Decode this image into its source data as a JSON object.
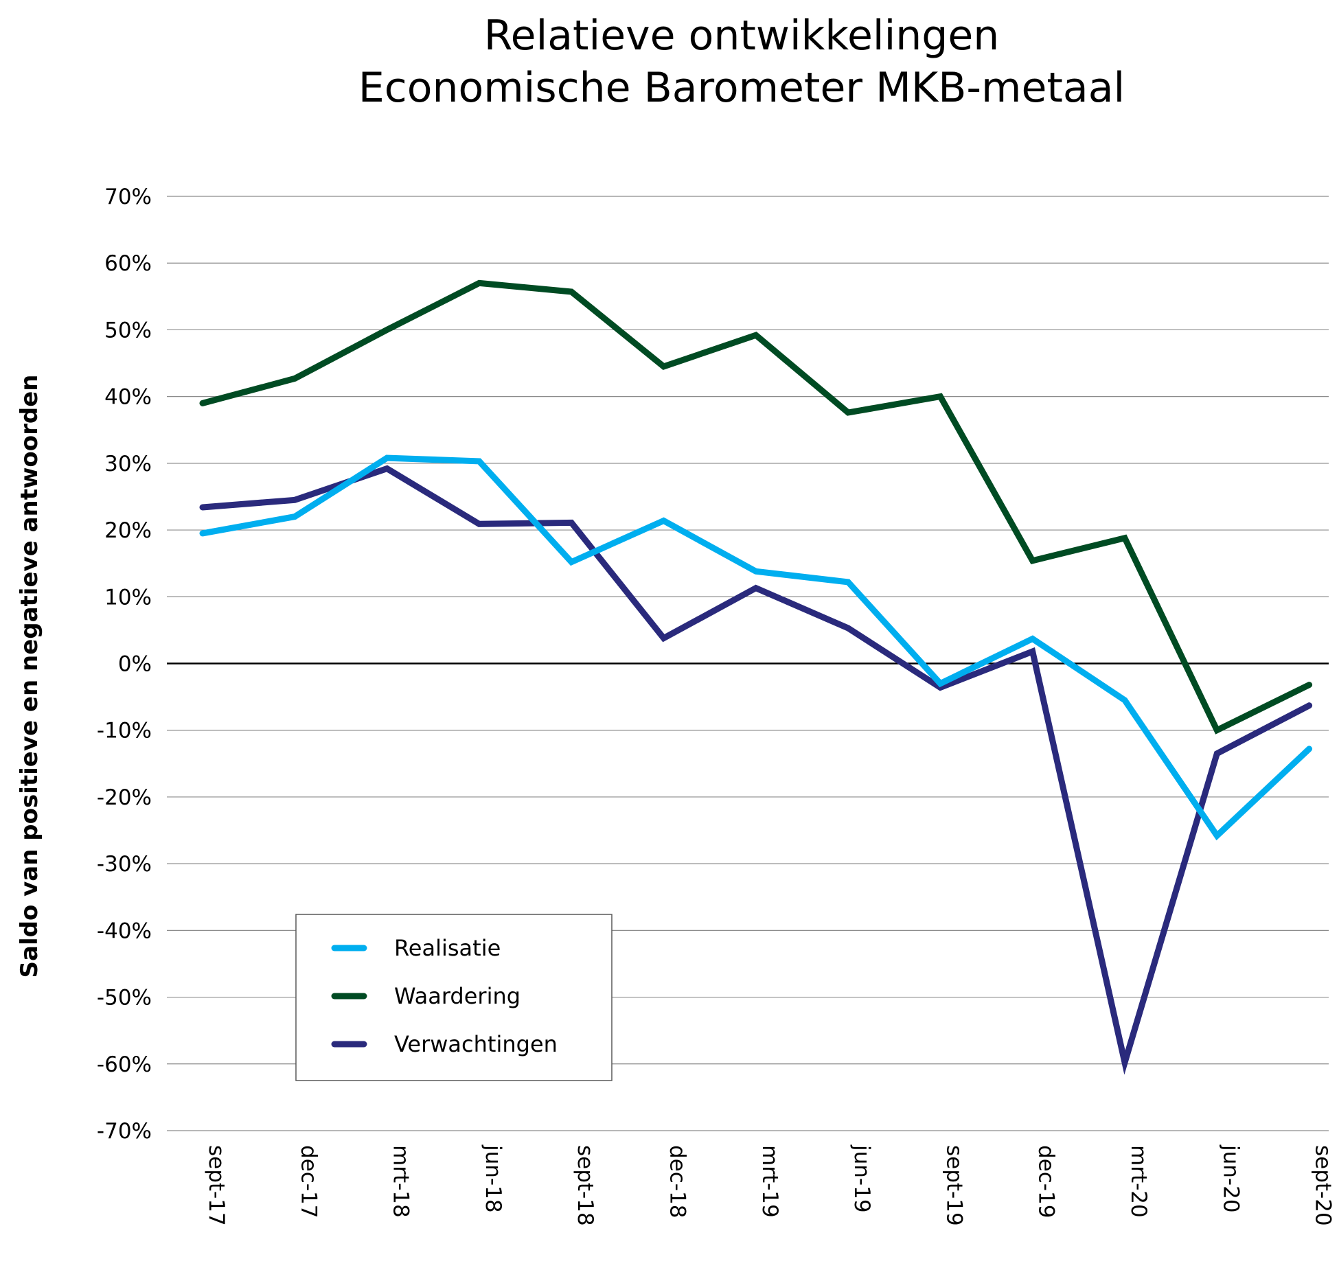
{
  "chart_data": {
    "type": "line",
    "title": [
      "Relatieve ontwikkelingen",
      "Economische Barometer MKB-metaal"
    ],
    "xlabel": "",
    "ylabel": "Saldo van positieve en negatieve antwoorden",
    "ylim": [
      -70,
      70
    ],
    "ytick_step": 10,
    "yticks": [
      "70%",
      "60%",
      "50%",
      "40%",
      "30%",
      "20%",
      "10%",
      "0%",
      "-10%",
      "-20%",
      "-30%",
      "-40%",
      "-50%",
      "-60%",
      "-70%"
    ],
    "categories": [
      "sept-17",
      "dec-17",
      "mrt-18",
      "jun-18",
      "sept-18",
      "dec-18",
      "mrt-19",
      "jun-19",
      "sept-19",
      "dec-19",
      "mrt-20",
      "jun-20",
      "sept-20"
    ],
    "grid": true,
    "legend_position": "lower-left",
    "series": [
      {
        "name": "Realisatie",
        "color": "#00AEEF",
        "values": [
          19.5,
          22,
          30.8,
          30.3,
          15.2,
          21.4,
          13.8,
          12.2,
          -3,
          3.7,
          -5.5,
          -25.8,
          -12.8
        ]
      },
      {
        "name": "Waardering",
        "color": "#004B23",
        "values": [
          39,
          42.7,
          50,
          57,
          55.7,
          44.5,
          49.2,
          37.6,
          40,
          15.4,
          18.8,
          -10,
          -3.2
        ]
      },
      {
        "name": "Verwachtingen",
        "color": "#2A2A7C",
        "values": [
          23.4,
          24.5,
          29.2,
          20.9,
          21.1,
          3.8,
          11.3,
          5.3,
          -3.6,
          1.8,
          -59.8,
          -13.5,
          -6.3
        ]
      }
    ]
  }
}
